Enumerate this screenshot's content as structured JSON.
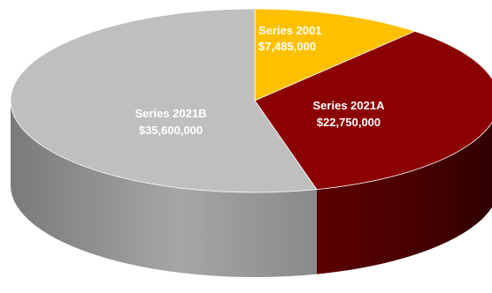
{
  "chart_data": {
    "type": "pie",
    "style": "3d",
    "title": "",
    "legend": "none",
    "slices": [
      {
        "name": "Series 2001",
        "value": 7485000,
        "value_label": "$7,485,000",
        "color": "#FFC000",
        "side_color": "#B38600"
      },
      {
        "name": "Series 2021A",
        "value": 22750000,
        "value_label": "$22,750,000",
        "color": "#8B0000",
        "side_color": "#420000"
      },
      {
        "name": "Series 2021B",
        "value": 35600000,
        "value_label": "$35,600,000",
        "color": "#BFBFBF",
        "side_color": "#8A8A8A"
      }
    ]
  }
}
